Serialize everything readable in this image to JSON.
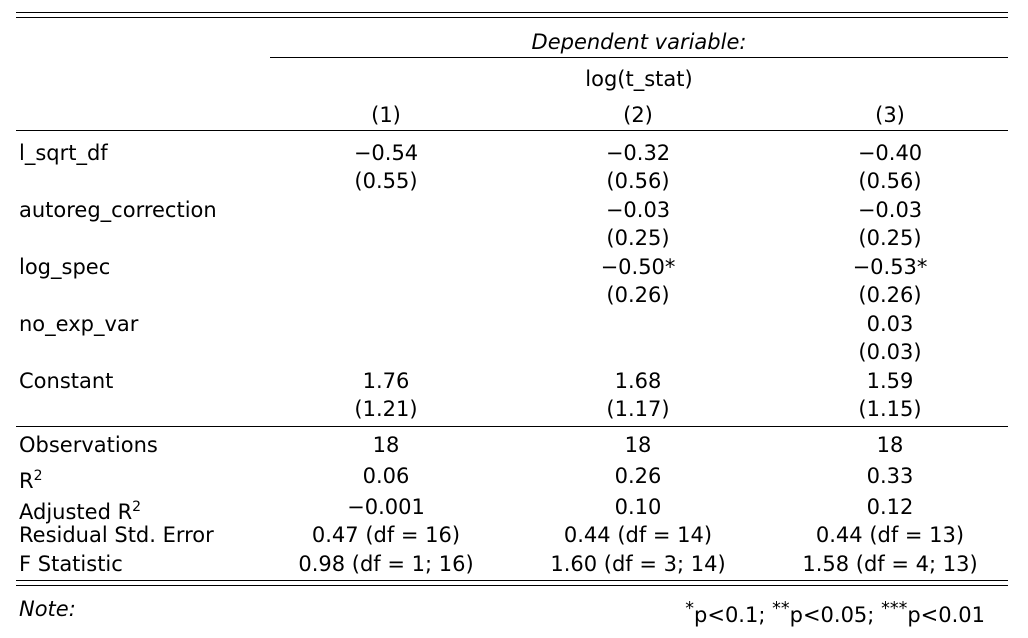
{
  "header": {
    "dependent_variable": "Dependent variable:",
    "dependent_name": "log(t_stat)",
    "columns": [
      "(1)",
      "(2)",
      "(3)"
    ]
  },
  "coefficients": [
    {
      "name": "l_sqrt_df",
      "est": [
        "−0.54",
        "−0.32",
        "−0.40"
      ],
      "se": [
        "(0.55)",
        "(0.56)",
        "(0.56)"
      ]
    },
    {
      "name": "autoreg_correction",
      "est": [
        "",
        "−0.03",
        "−0.03"
      ],
      "se": [
        "",
        "(0.25)",
        "(0.25)"
      ]
    },
    {
      "name": "log_spec",
      "est": [
        "",
        "−0.50*",
        "−0.53*"
      ],
      "se": [
        "",
        "(0.26)",
        "(0.26)"
      ]
    },
    {
      "name": "no_exp_var",
      "est": [
        "",
        "",
        "0.03"
      ],
      "se": [
        "",
        "",
        "(0.03)"
      ]
    },
    {
      "name": "Constant",
      "est": [
        "1.76",
        "1.68",
        "1.59"
      ],
      "se": [
        "(1.21)",
        "(1.17)",
        "(1.15)"
      ]
    }
  ],
  "stats": [
    {
      "name": "Observations",
      "values": [
        "18",
        "18",
        "18"
      ]
    },
    {
      "name": "R",
      "sup": "2",
      "values": [
        "0.06",
        "0.26",
        "0.33"
      ]
    },
    {
      "name": "Adjusted R",
      "sup": "2",
      "values": [
        "−0.001",
        "0.10",
        "0.12"
      ]
    },
    {
      "name": "Residual Std. Error",
      "values": [
        "0.47 (df = 16)",
        "0.44 (df = 14)",
        "0.44 (df = 13)"
      ]
    },
    {
      "name": "F Statistic",
      "values": [
        "0.98 (df = 1; 16)",
        "1.60 (df = 3; 14)",
        "1.58 (df = 4; 13)"
      ]
    }
  ],
  "note": {
    "label": "Note:",
    "significance": [
      {
        "stars": "*",
        "text": "p<0.1;"
      },
      {
        "stars": "**",
        "text": "p<0.05;"
      },
      {
        "stars": "***",
        "text": "p<0.01"
      }
    ]
  }
}
